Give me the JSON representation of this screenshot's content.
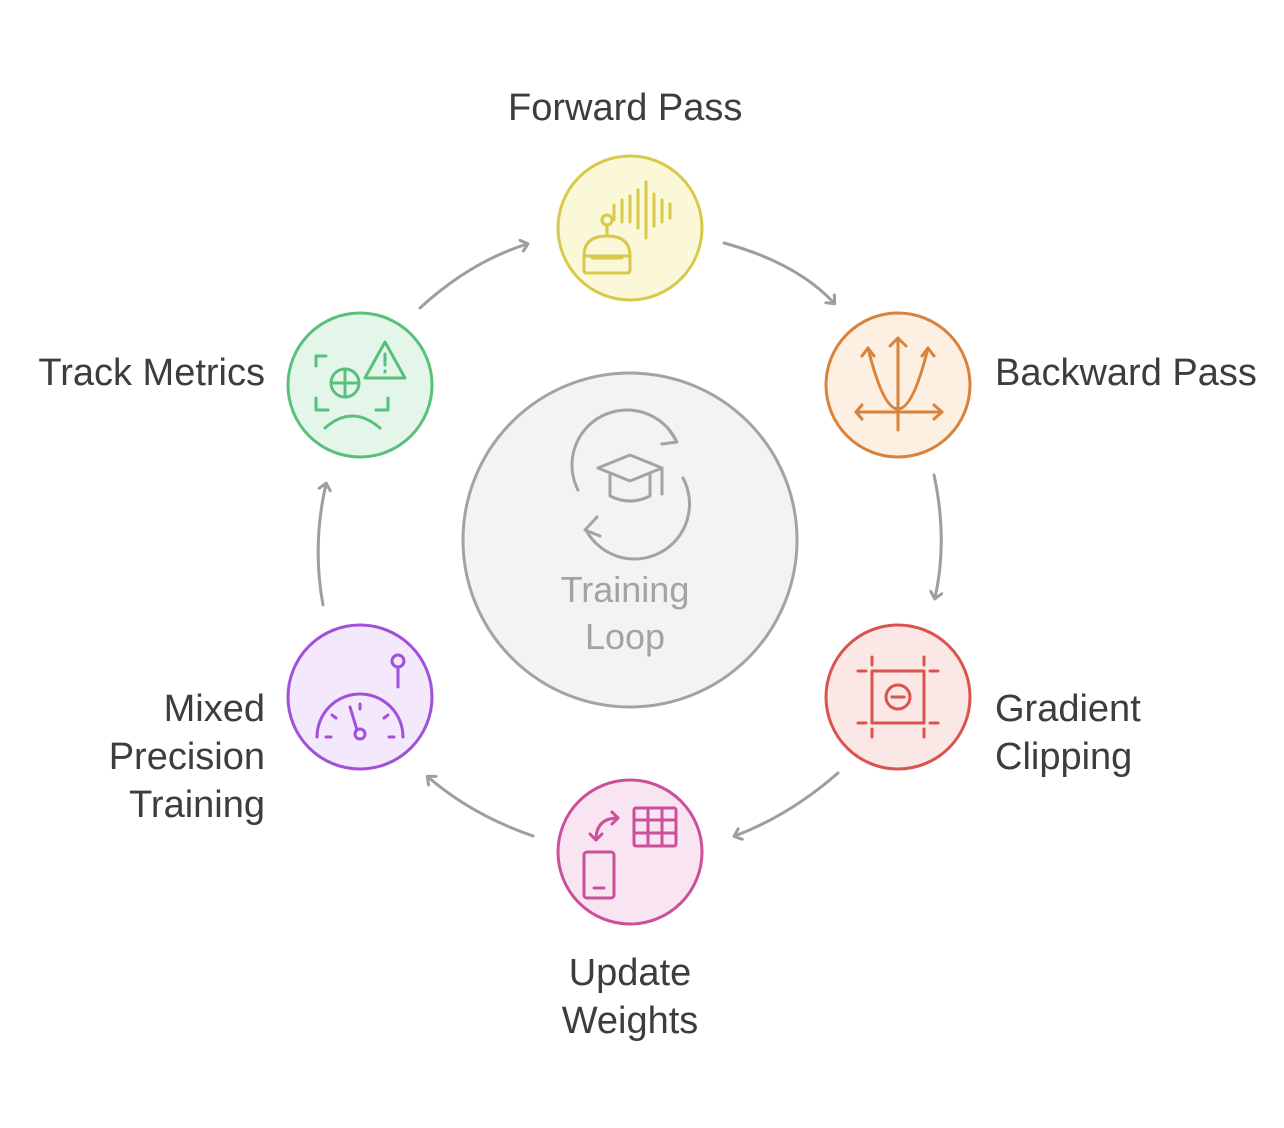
{
  "center": {
    "label": "Training\nLoop",
    "icon": "graduation-cycle-icon",
    "color": "#a3a3a3"
  },
  "steps": [
    {
      "id": "forward",
      "label": "Forward Pass",
      "icon": "robot-voice-icon",
      "stroke": "#d9c94a",
      "fill": "#fbf8d8"
    },
    {
      "id": "backward",
      "label": "Backward Pass",
      "icon": "parabola-axes-icon",
      "stroke": "#d9823b",
      "fill": "#fdefe1"
    },
    {
      "id": "clipping",
      "label": "Gradient\nClipping",
      "icon": "crop-minus-icon",
      "stroke": "#d9544c",
      "fill": "#fbe7e5"
    },
    {
      "id": "update",
      "label": "Update\nWeights",
      "icon": "device-table-icon",
      "stroke": "#cc4f9c",
      "fill": "#f9e5f1"
    },
    {
      "id": "mixed",
      "label": "Mixed\nPrecision\nTraining",
      "icon": "speedometer-icon",
      "stroke": "#a24fd9",
      "fill": "#f3e8fc"
    },
    {
      "id": "track",
      "label": "Track Metrics",
      "icon": "face-scan-alert-icon",
      "stroke": "#58c07a",
      "fill": "#e4f6e9"
    }
  ],
  "arrow_color": "#9e9e9e"
}
